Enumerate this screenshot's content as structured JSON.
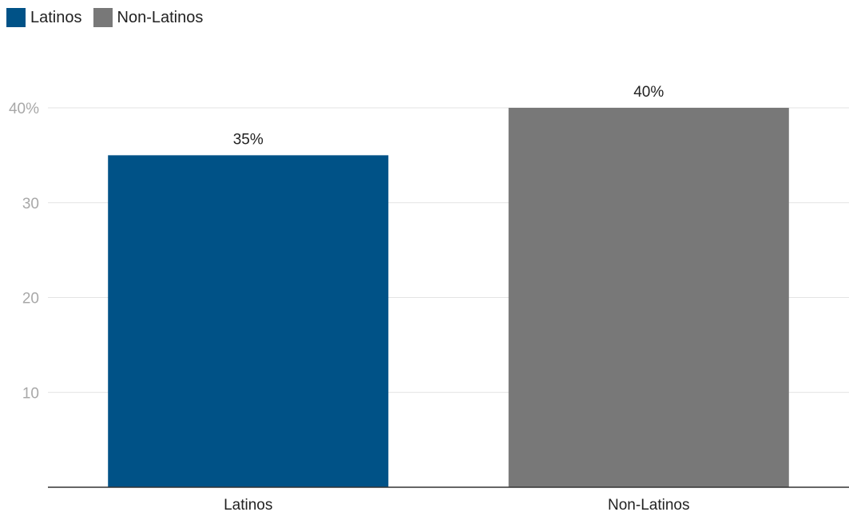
{
  "chart_data": {
    "type": "bar",
    "categories": [
      "Latinos",
      "Non-Latinos"
    ],
    "values": [
      35,
      40
    ],
    "data_labels": [
      "35%",
      "40%"
    ],
    "colors": [
      "#005287",
      "#787878"
    ],
    "legend": [
      "Latinos",
      "Non-Latinos"
    ],
    "legend_position": "top-left",
    "title": "",
    "xlabel": "",
    "ylabel": "",
    "ylim": [
      0,
      40
    ],
    "yticks": [
      10,
      20,
      30,
      40
    ],
    "ytick_labels": [
      "10",
      "20",
      "30",
      "40%"
    ],
    "grid": true
  }
}
